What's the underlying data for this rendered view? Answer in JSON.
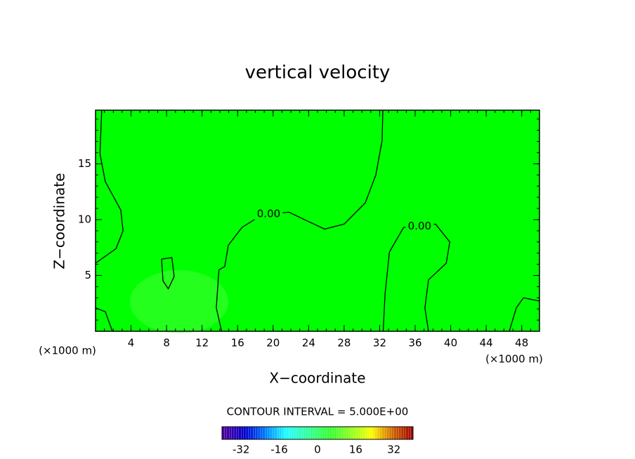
{
  "chart_data": {
    "type": "contour",
    "title": "vertical velocity",
    "x_label": "X−coordinate",
    "y_label": "Z−coordinate",
    "y_unit_label": "(×1000 m)",
    "x_unit_label": "(×1000 m)",
    "xlim": [
      0,
      50
    ],
    "xticks": [
      4,
      8,
      12,
      16,
      20,
      24,
      28,
      32,
      36,
      40,
      44,
      48
    ],
    "ylim": [
      0,
      19.8
    ],
    "yticks": [
      5,
      10,
      15
    ],
    "fill_color": "#00ff00",
    "line_color": "#000000",
    "contours": [
      {
        "level": 0,
        "x": [
          32.36,
          32.28,
          31.57,
          30.38,
          28.0,
          25.8,
          23.26,
          21.8,
          18.9,
          16.5,
          14.95,
          14.56,
          13.9,
          13.6,
          14.2
        ],
        "y": [
          19.8,
          17.1,
          14.0,
          11.5,
          9.6,
          9.15,
          10.1,
          10.66,
          10.5,
          9.3,
          7.7,
          5.8,
          5.5,
          2.1,
          0
        ]
      },
      {
        "level": 0,
        "x": [
          0.7,
          0.5,
          1.1,
          2.85,
          3.1,
          2.3,
          0
        ],
        "y": [
          19.8,
          15.9,
          13.4,
          10.85,
          9.0,
          7.4,
          6.1
        ]
      },
      {
        "level": 0,
        "x": [
          32.4,
          32.6,
          33.1,
          34.7,
          38.3,
          39.9,
          39.5,
          37.5,
          37.1,
          37.5
        ],
        "y": [
          0,
          3.3,
          7.1,
          9.3,
          9.6,
          8.0,
          6.1,
          4.6,
          2.1,
          0
        ]
      },
      {
        "level": 0,
        "x": [
          7.44,
          8.6,
          8.85,
          8.2,
          7.6,
          7.44
        ],
        "y": [
          6.46,
          6.6,
          4.9,
          3.8,
          4.5,
          6.46
        ]
      },
      {
        "level": 0,
        "x": [
          0,
          1.1,
          1.9
        ],
        "y": [
          2.1,
          1.75,
          0
        ]
      },
      {
        "level": 0,
        "x": [
          50,
          48.2,
          47.4,
          46.6
        ],
        "y": [
          2.7,
          3.0,
          2.1,
          0
        ]
      }
    ],
    "contour_labels": [
      {
        "text": "0.00",
        "x": 19.5,
        "y": 10.5
      },
      {
        "text": "0.00",
        "x": 36.5,
        "y": 9.4
      }
    ],
    "contour_interval_label": "CONTOUR INTERVAL = 5.000E+00",
    "colorbar": {
      "lim": [
        -40,
        40
      ],
      "ticks": [
        -32,
        -16,
        0,
        16,
        32
      ]
    }
  }
}
